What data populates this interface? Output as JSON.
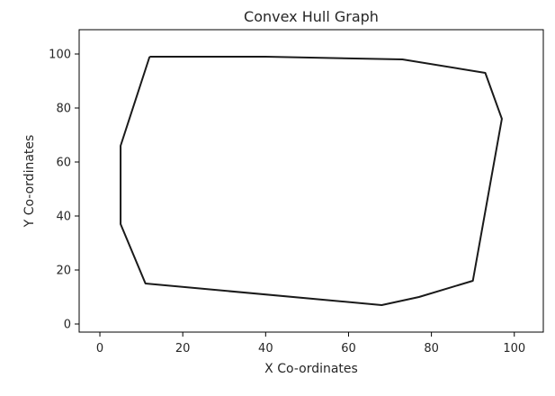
{
  "chart_data": {
    "type": "line",
    "title": "Convex Hull Graph",
    "xlabel": "X Co-ordinates",
    "ylabel": "Y Co-ordinates",
    "xlim": [
      -5,
      107
    ],
    "ylim": [
      -3,
      109
    ],
    "xticks": [
      0,
      20,
      40,
      60,
      80,
      100
    ],
    "yticks": [
      0,
      20,
      40,
      60,
      80,
      100
    ],
    "grid": false,
    "line_color": "#1a1a1a",
    "series": [
      {
        "x": [
          12,
          40,
          73,
          93,
          97,
          90,
          77,
          68,
          11,
          5,
          5,
          12
        ],
        "y": [
          99,
          99,
          98,
          93,
          76,
          16,
          10,
          7,
          15,
          37,
          66,
          99
        ]
      }
    ]
  }
}
